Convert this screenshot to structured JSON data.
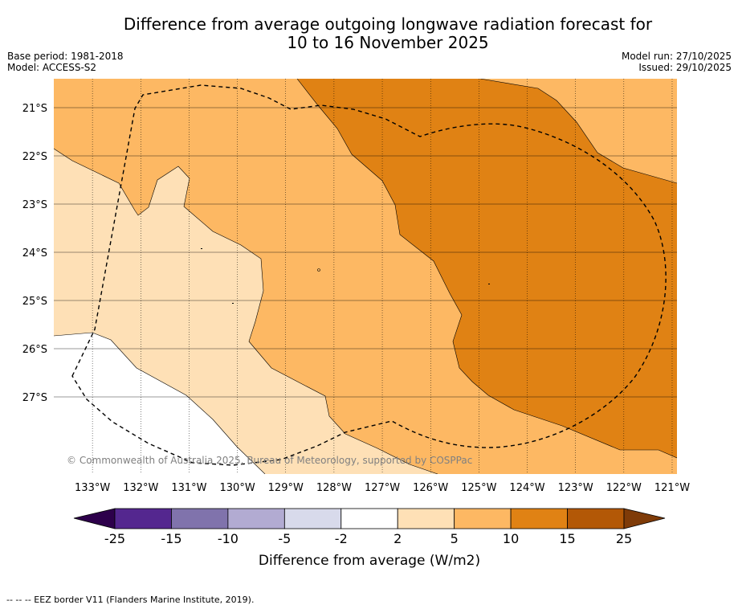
{
  "header": {
    "title_line1": "Difference from average outgoing longwave radiation forecast for",
    "title_line2": "10 to 16 November 2025",
    "base_period": "Base period: 1981-2018",
    "model": "Model: ACCESS-S2",
    "model_run": "Model run: 27/10/2025",
    "issued": "Issued: 29/10/2025"
  },
  "map": {
    "copyright": "© Commonwealth of Australia 2025, Bureau of Meteorology, supported by COSPPac"
  },
  "footer": {
    "eez_legend": "--  --  -- EEZ border V11 (Flanders Marine Institute, 2019)."
  },
  "chart_data": {
    "type": "heatmap",
    "title": "Difference from average outgoing longwave radiation forecast for 10 to 16 November 2025",
    "x_ticks": [
      "133°W",
      "132°W",
      "131°W",
      "130°W",
      "129°W",
      "128°W",
      "127°W",
      "126°W",
      "125°W",
      "124°W",
      "123°W",
      "122°W",
      "121°W"
    ],
    "y_ticks": [
      "21°S",
      "22°S",
      "23°S",
      "24°S",
      "25°S",
      "26°S",
      "27°S"
    ],
    "lon_range": [
      -133.8,
      -120.9
    ],
    "lat_range": [
      -28.6,
      -20.4
    ],
    "colorbar": {
      "label": "Difference from average (W/m2)",
      "ticks": [
        "-25",
        "-15",
        "-10",
        "-5",
        "-2",
        "2",
        "5",
        "10",
        "15",
        "25"
      ],
      "bins": [
        {
          "range": [
            -25,
            -15
          ],
          "color": "#54278f"
        },
        {
          "range": [
            -15,
            -10
          ],
          "color": "#8073ac"
        },
        {
          "range": [
            -10,
            -5
          ],
          "color": "#b2abd2"
        },
        {
          "range": [
            -5,
            -2
          ],
          "color": "#d8daeb"
        },
        {
          "range": [
            -2,
            2
          ],
          "color": "#ffffff"
        },
        {
          "range": [
            2,
            5
          ],
          "color": "#fee0b6"
        },
        {
          "range": [
            5,
            10
          ],
          "color": "#fdb863"
        },
        {
          "range": [
            10,
            15
          ],
          "color": "#e08214"
        },
        {
          "range": [
            15,
            25
          ],
          "color": "#b35806"
        }
      ],
      "under_color": "#2d004b",
      "over_color": "#7f3b08"
    },
    "regions": [
      {
        "range": "-2 to 2",
        "area": "south-west corner"
      },
      {
        "range": "2 to 5",
        "area": "western band"
      },
      {
        "range": "5 to 10",
        "area": "central and north-east"
      },
      {
        "range": "10 to 15",
        "area": "eastern core"
      }
    ]
  }
}
